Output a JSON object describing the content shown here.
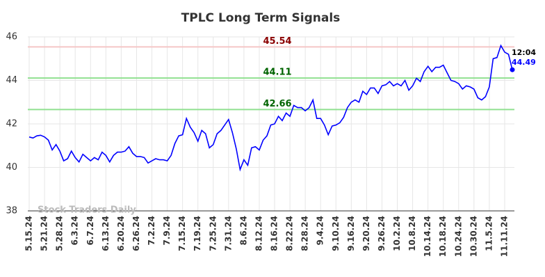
{
  "chart_data": {
    "type": "line",
    "title": "TPLC Long Term Signals",
    "watermark": "Stock Traders Daily",
    "color": "#0000ff",
    "categories": [
      "5.15.24",
      null,
      null,
      null,
      "5.21.24",
      null,
      null,
      null,
      "5.28.24",
      null,
      null,
      null,
      "6.3.24",
      null,
      null,
      null,
      "6.7.24",
      null,
      null,
      null,
      "6.13.24",
      null,
      null,
      null,
      "6.20.24",
      null,
      null,
      null,
      "6.26.24",
      null,
      null,
      null,
      "7.2.24",
      null,
      null,
      null,
      "7.9.24",
      null,
      null,
      null,
      "7.15.24",
      null,
      null,
      null,
      "7.19.24",
      null,
      null,
      null,
      "7.25.24",
      null,
      null,
      null,
      "7.31.24",
      null,
      null,
      null,
      "8.6.24",
      null,
      null,
      null,
      "8.12.24",
      null,
      null,
      null,
      "8.16.24",
      null,
      null,
      null,
      "8.22.24",
      null,
      null,
      null,
      "8.28.24",
      null,
      null,
      null,
      "9.4.24",
      null,
      null,
      null,
      "9.10.24",
      null,
      null,
      null,
      "9.16.24",
      null,
      null,
      null,
      "9.20.24",
      null,
      null,
      null,
      "9.26.24",
      null,
      null,
      null,
      "10.2.24",
      null,
      null,
      null,
      "10.8.24",
      null,
      null,
      null,
      "10.14.24",
      null,
      null,
      null,
      "10.18.24",
      null,
      null,
      null,
      "10.24.24",
      null,
      null,
      null,
      "10.30.24",
      null,
      null,
      null,
      "11.5.24",
      null,
      null,
      null,
      "11.11.24",
      null,
      null
    ],
    "values": [
      41.4,
      41.35,
      41.45,
      41.48,
      41.4,
      41.25,
      40.8,
      41.05,
      40.75,
      40.3,
      40.4,
      40.75,
      40.45,
      40.25,
      40.6,
      40.45,
      40.3,
      40.45,
      40.35,
      40.7,
      40.55,
      40.25,
      40.55,
      40.7,
      40.7,
      40.75,
      40.95,
      40.65,
      40.5,
      40.5,
      40.45,
      40.2,
      40.3,
      40.4,
      40.35,
      40.35,
      40.3,
      40.55,
      41.1,
      41.45,
      41.5,
      42.25,
      41.85,
      41.6,
      41.2,
      41.7,
      41.55,
      40.9,
      41.05,
      41.55,
      41.7,
      41.95,
      42.2,
      41.6,
      40.85,
      39.9,
      40.35,
      40.1,
      40.9,
      40.95,
      40.8,
      41.25,
      41.45,
      41.95,
      42.0,
      42.35,
      42.15,
      42.5,
      42.35,
      42.85,
      42.75,
      42.75,
      42.6,
      42.75,
      43.1,
      42.25,
      42.25,
      41.95,
      41.5,
      41.9,
      41.95,
      42.05,
      42.3,
      42.75,
      43.0,
      43.1,
      43.0,
      43.5,
      43.35,
      43.65,
      43.65,
      43.4,
      43.75,
      43.8,
      43.95,
      43.75,
      43.85,
      43.75,
      44.0,
      43.55,
      43.75,
      44.1,
      43.95,
      44.4,
      44.65,
      44.4,
      44.6,
      44.6,
      44.7,
      44.35,
      44.0,
      43.95,
      43.85,
      43.6,
      43.75,
      43.7,
      43.6,
      43.2,
      43.1,
      43.25,
      43.7,
      45.0,
      45.05,
      45.6,
      45.3,
      45.2,
      44.49
    ],
    "last_time": "12:04",
    "hlines": [
      {
        "value": 45.54,
        "color": "#f5c6c6",
        "label_color": "#8b0000"
      },
      {
        "value": 44.11,
        "color": "#90e090",
        "label_color": "#006400"
      },
      {
        "value": 42.66,
        "color": "#90e090",
        "label_color": "#006400"
      }
    ],
    "ylim": [
      38,
      46
    ],
    "yticks": [
      38,
      40,
      42,
      44,
      46
    ],
    "grid": true
  }
}
